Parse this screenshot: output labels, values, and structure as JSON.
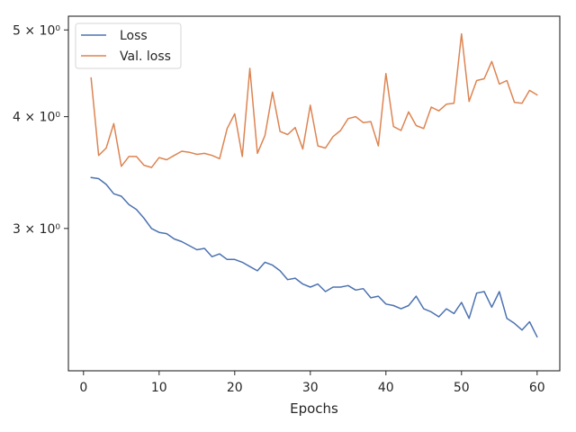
{
  "chart_data": {
    "type": "line",
    "title": "",
    "xlabel": "Epochs",
    "ylabel": "",
    "yscale": "log",
    "xlim": [
      -2,
      63
    ],
    "ylim": [
      2.08,
      5.18
    ],
    "x_ticks": [
      0,
      10,
      20,
      30,
      40,
      50,
      60
    ],
    "x_tick_labels": [
      "0",
      "10",
      "20",
      "30",
      "40",
      "50",
      "60"
    ],
    "y_ticks": [
      3,
      4,
      5
    ],
    "y_tick_labels": [
      "3 × 10⁰",
      "4 × 10⁰",
      "5 × 10⁰"
    ],
    "grid": false,
    "legend_position": "top-left",
    "x": [
      1,
      2,
      3,
      4,
      5,
      6,
      7,
      8,
      9,
      10,
      11,
      12,
      13,
      14,
      15,
      16,
      17,
      18,
      19,
      20,
      21,
      22,
      23,
      24,
      25,
      26,
      27,
      28,
      29,
      30,
      31,
      32,
      33,
      34,
      35,
      36,
      37,
      38,
      39,
      40,
      41,
      42,
      43,
      44,
      45,
      46,
      47,
      48,
      49,
      50,
      51,
      52,
      53,
      54,
      55,
      56,
      57,
      58,
      59,
      60
    ],
    "series": [
      {
        "name": "Loss",
        "color": "#4c72b0",
        "values": [
          3.42,
          3.41,
          3.36,
          3.28,
          3.26,
          3.19,
          3.15,
          3.08,
          3.0,
          2.97,
          2.96,
          2.92,
          2.9,
          2.87,
          2.84,
          2.85,
          2.79,
          2.81,
          2.77,
          2.77,
          2.75,
          2.72,
          2.69,
          2.75,
          2.73,
          2.69,
          2.63,
          2.64,
          2.6,
          2.58,
          2.6,
          2.55,
          2.58,
          2.58,
          2.59,
          2.56,
          2.57,
          2.51,
          2.52,
          2.47,
          2.46,
          2.44,
          2.46,
          2.52,
          2.44,
          2.42,
          2.39,
          2.44,
          2.41,
          2.48,
          2.38,
          2.54,
          2.55,
          2.45,
          2.55,
          2.38,
          2.35,
          2.31,
          2.36,
          2.27
        ]
      },
      {
        "name": "Val. loss",
        "color": "#dd8452",
        "values": [
          4.42,
          3.62,
          3.69,
          3.93,
          3.52,
          3.61,
          3.61,
          3.53,
          3.51,
          3.6,
          3.58,
          3.62,
          3.66,
          3.65,
          3.63,
          3.64,
          3.62,
          3.59,
          3.88,
          4.03,
          3.61,
          4.53,
          3.64,
          3.81,
          4.26,
          3.85,
          3.82,
          3.89,
          3.68,
          4.12,
          3.71,
          3.69,
          3.8,
          3.86,
          3.98,
          4.0,
          3.94,
          3.95,
          3.71,
          4.47,
          3.9,
          3.86,
          4.05,
          3.91,
          3.88,
          4.1,
          4.06,
          4.13,
          4.14,
          4.95,
          4.16,
          4.39,
          4.41,
          4.61,
          4.35,
          4.39,
          4.15,
          4.14,
          4.28,
          4.23
        ]
      }
    ]
  }
}
